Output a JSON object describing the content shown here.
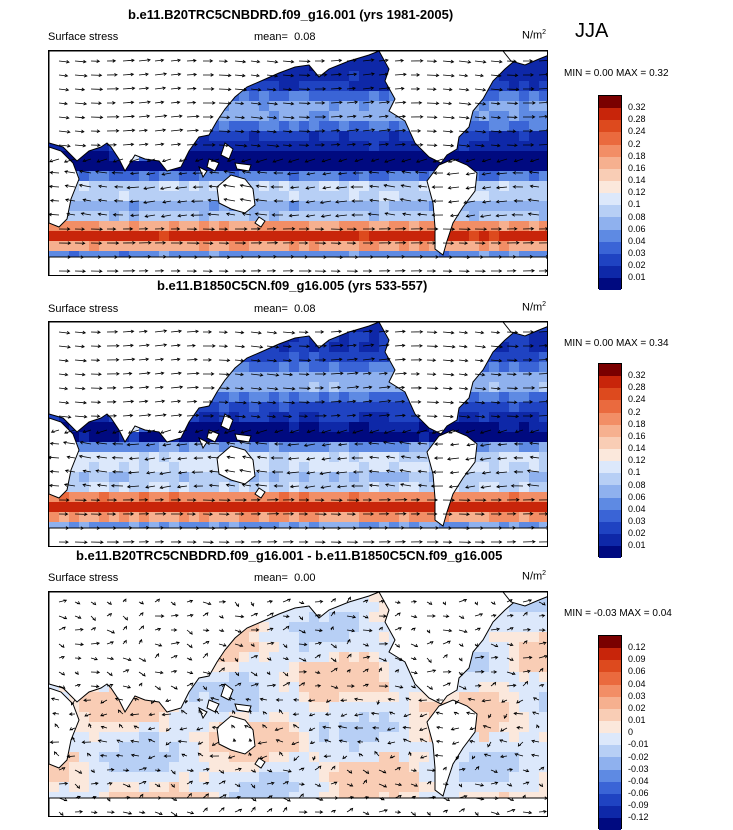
{
  "season": "JJA",
  "panels": [
    {
      "title": "b.e11.B20TRC5CNBDRD.f09_g16.001 (yrs 1981-2005)",
      "variable": "Surface stress",
      "mean_label": "mean=",
      "mean_value": "0.08",
      "units": "N/m",
      "units_exp": "2",
      "min_label": "MIN =",
      "min_value": "0.00",
      "max_label": "MAX =",
      "max_value": "0.32",
      "colorbar": {
        "labels": [
          "0.32",
          "0.28",
          "0.24",
          "0.2",
          "0.18",
          "0.16",
          "0.14",
          "0.12",
          "0.1",
          "0.08",
          "0.06",
          "0.04",
          "0.03",
          "0.02",
          "0.01"
        ],
        "colors": [
          "#7a0000",
          "#c8250a",
          "#dd4a1e",
          "#ea6a3e",
          "#f28e66",
          "#f6b08f",
          "#f9cdb5",
          "#fbe8dc",
          "#dce8fb",
          "#b7cff5",
          "#8fb1ee",
          "#5e8ae3",
          "#3a64d6",
          "#1f43c2",
          "#0e28a8",
          "#000a80"
        ]
      },
      "field_type": "absolute"
    },
    {
      "title": "b.e11.B1850C5CN.f09_g16.005 (yrs 533-557)",
      "variable": "Surface stress",
      "mean_label": "mean=",
      "mean_value": "0.08",
      "units": "N/m",
      "units_exp": "2",
      "min_label": "MIN =",
      "min_value": "0.00",
      "max_label": "MAX =",
      "max_value": "0.34",
      "colorbar": {
        "labels": [
          "0.32",
          "0.28",
          "0.24",
          "0.2",
          "0.18",
          "0.16",
          "0.14",
          "0.12",
          "0.1",
          "0.08",
          "0.06",
          "0.04",
          "0.03",
          "0.02",
          "0.01"
        ],
        "colors": [
          "#7a0000",
          "#c8250a",
          "#dd4a1e",
          "#ea6a3e",
          "#f28e66",
          "#f6b08f",
          "#f9cdb5",
          "#fbe8dc",
          "#dce8fb",
          "#b7cff5",
          "#8fb1ee",
          "#5e8ae3",
          "#3a64d6",
          "#1f43c2",
          "#0e28a8",
          "#000a80"
        ]
      },
      "field_type": "absolute"
    },
    {
      "title": "b.e11.B20TRC5CNBDRD.f09_g16.001 - b.e11.B1850C5CN.f09_g16.005",
      "variable": "Surface stress",
      "mean_label": "mean=",
      "mean_value": "0.00",
      "units": "N/m",
      "units_exp": "2",
      "min_label": "MIN =",
      "min_value": "-0.03",
      "max_label": "MAX =",
      "max_value": "0.04",
      "colorbar": {
        "labels": [
          "0.12",
          "0.09",
          "0.06",
          "0.04",
          "0.03",
          "0.02",
          "0.01",
          "0",
          "-0.01",
          "-0.02",
          "-0.03",
          "-0.04",
          "-0.06",
          "-0.09",
          "-0.12"
        ],
        "colors": [
          "#7a0000",
          "#c8250a",
          "#dd4a1e",
          "#ea6a3e",
          "#f28e66",
          "#f6b08f",
          "#f9cdb5",
          "#fbe8dc",
          "#dce8fb",
          "#b7cff5",
          "#8fb1ee",
          "#5e8ae3",
          "#3a64d6",
          "#1f43c2",
          "#0e28a8",
          "#000a80"
        ]
      },
      "field_type": "difference"
    }
  ]
}
